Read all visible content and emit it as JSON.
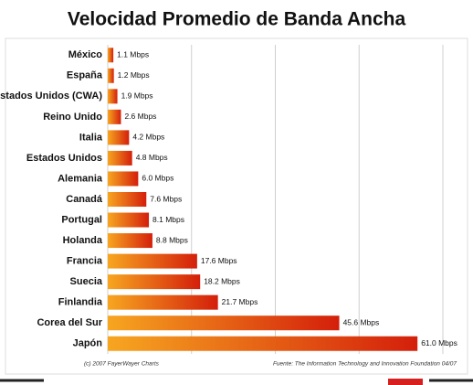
{
  "chart_data": {
    "type": "hbar",
    "title": "Velocidad Promedio de Banda Ancha",
    "categories": [
      "México",
      "España",
      "Estados Unidos (CWA)",
      "Reino Unido",
      "Italia",
      "Estados Unidos",
      "Alemania",
      "Canadá",
      "Portugal",
      "Holanda",
      "Francia",
      "Suecia",
      "Finlandia",
      "Corea del Sur",
      "Japón"
    ],
    "values": [
      1.1,
      1.2,
      1.9,
      2.6,
      4.2,
      4.8,
      6.0,
      7.6,
      8.1,
      8.8,
      17.6,
      18.2,
      21.7,
      45.6,
      61.0
    ],
    "value_labels": [
      "1.1 Mbps",
      "1.2 Mbps",
      "1.9 Mbps",
      "2.6 Mbps",
      "4.2 Mbps",
      "4.8 Mbps",
      "6.0 Mbps",
      "7.6 Mbps",
      "8.1 Mbps",
      "8.8 Mbps",
      "17.6 Mbps",
      "18.2 Mbps",
      "21.7 Mbps",
      "45.6 Mbps",
      "61.0 Mbps"
    ],
    "gradient": [
      "#f7a620",
      "#d41f0b"
    ],
    "xlim": [
      0,
      66
    ],
    "xticks": [
      0,
      16.5,
      33,
      49.5,
      66
    ],
    "grid": true,
    "footer_left": "(c) 2007 FayerWayer Charts",
    "footer_right": "Fuente: The Information Technology and Innovation Foundation 04/07"
  }
}
